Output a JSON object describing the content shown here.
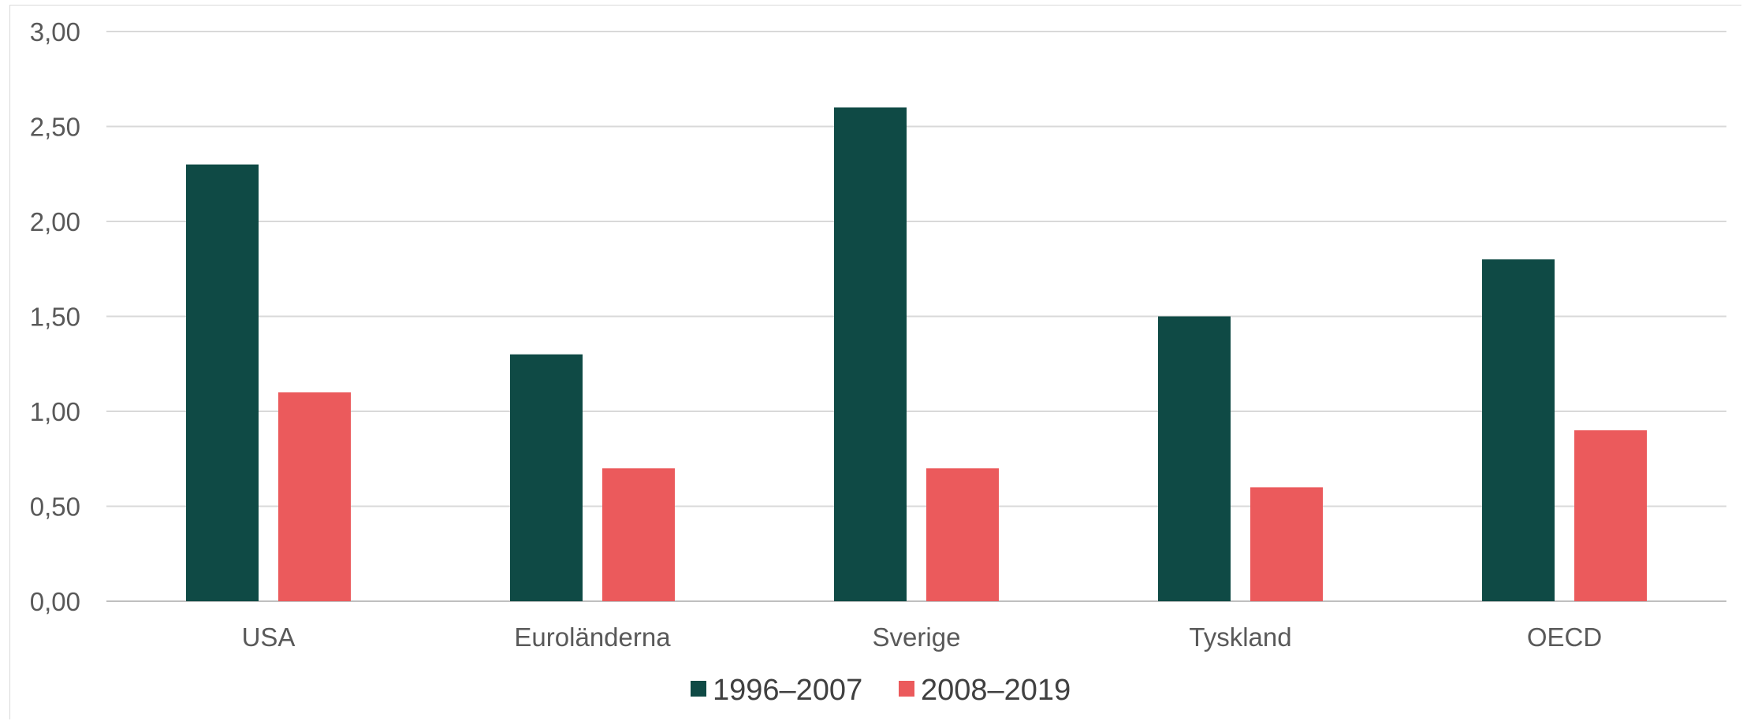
{
  "chart_data": {
    "type": "bar",
    "title": "",
    "xlabel": "",
    "ylabel": "",
    "categories": [
      "USA",
      "Euroländerna",
      "Sverige",
      "Tyskland",
      "OECD"
    ],
    "series": [
      {
        "name": "1996–2007",
        "color": "#0f4a45",
        "values": [
          2.3,
          1.3,
          2.6,
          1.5,
          1.8
        ]
      },
      {
        "name": "2008–2019",
        "color": "#eb5a5c",
        "values": [
          1.1,
          0.7,
          0.7,
          0.6,
          0.9
        ]
      }
    ],
    "ylim": [
      0,
      3
    ],
    "yticks": [
      "0,00",
      "0,50",
      "1,00",
      "1,50",
      "2,00",
      "2,50",
      "3,00"
    ],
    "grid": true,
    "legend_position": "bottom"
  }
}
